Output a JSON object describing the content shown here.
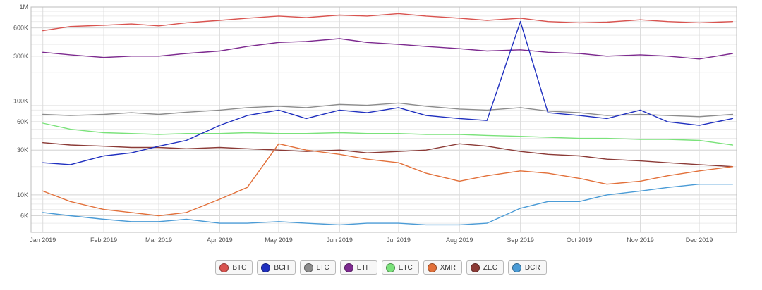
{
  "chart_data": {
    "type": "line",
    "title": "",
    "xlabel": "",
    "ylabel": "",
    "y_scale": "log",
    "ylim": [
      4000,
      1000000
    ],
    "y_ticks": [
      {
        "value": 6000,
        "label": "6K"
      },
      {
        "value": 10000,
        "label": "10K"
      },
      {
        "value": 30000,
        "label": "30K"
      },
      {
        "value": 60000,
        "label": "60K"
      },
      {
        "value": 100000,
        "label": "100K"
      },
      {
        "value": 300000,
        "label": "300K"
      },
      {
        "value": 600000,
        "label": "600K"
      },
      {
        "value": 1000000,
        "label": "1M"
      }
    ],
    "xlim": [
      "2018-12-26",
      "2019-12-20"
    ],
    "x_ticks": [
      {
        "date": "2019-01-01",
        "label": "Jan 2019"
      },
      {
        "date": "2019-02-01",
        "label": "Feb 2019"
      },
      {
        "date": "2019-03-01",
        "label": "Mar 2019"
      },
      {
        "date": "2019-04-01",
        "label": "Apr 2019"
      },
      {
        "date": "2019-05-01",
        "label": "May 2019"
      },
      {
        "date": "2019-06-01",
        "label": "Jun 2019"
      },
      {
        "date": "2019-07-01",
        "label": "Jul 2019"
      },
      {
        "date": "2019-08-01",
        "label": "Aug 2019"
      },
      {
        "date": "2019-09-01",
        "label": "Sep 2019"
      },
      {
        "date": "2019-10-01",
        "label": "Oct 2019"
      },
      {
        "date": "2019-11-01",
        "label": "Nov 2019"
      },
      {
        "date": "2019-12-01",
        "label": "Dec 2019"
      }
    ],
    "grid": true,
    "legend_position": "bottom-center",
    "x": [
      "2019-01-01",
      "2019-01-15",
      "2019-02-01",
      "2019-02-15",
      "2019-03-01",
      "2019-03-15",
      "2019-04-01",
      "2019-04-15",
      "2019-05-01",
      "2019-05-15",
      "2019-06-01",
      "2019-06-15",
      "2019-07-01",
      "2019-07-15",
      "2019-08-01",
      "2019-08-15",
      "2019-09-01",
      "2019-09-15",
      "2019-10-01",
      "2019-10-15",
      "2019-11-01",
      "2019-11-15",
      "2019-12-01",
      "2019-12-18"
    ],
    "series": [
      {
        "name": "BTC",
        "color": "#d9534f",
        "values": [
          560000,
          620000,
          640000,
          660000,
          630000,
          680000,
          720000,
          760000,
          800000,
          770000,
          820000,
          800000,
          850000,
          800000,
          760000,
          720000,
          760000,
          700000,
          680000,
          690000,
          730000,
          700000,
          680000,
          700000
        ]
      },
      {
        "name": "BCH",
        "color": "#1f2fbf",
        "values": [
          22000,
          21000,
          26000,
          28000,
          33000,
          38000,
          55000,
          70000,
          80000,
          65000,
          80000,
          75000,
          85000,
          70000,
          65000,
          62000,
          700000,
          75000,
          70000,
          65000,
          80000,
          60000,
          55000,
          65000
        ]
      },
      {
        "name": "LTC",
        "color": "#8c8c8c",
        "values": [
          72000,
          70000,
          72000,
          75000,
          72000,
          76000,
          80000,
          85000,
          88000,
          85000,
          92000,
          90000,
          95000,
          88000,
          82000,
          80000,
          85000,
          78000,
          75000,
          70000,
          72000,
          70000,
          68000,
          72000
        ]
      },
      {
        "name": "ETH",
        "color": "#7d2a8f",
        "values": [
          330000,
          310000,
          290000,
          300000,
          300000,
          320000,
          340000,
          380000,
          420000,
          430000,
          460000,
          420000,
          400000,
          380000,
          360000,
          340000,
          350000,
          330000,
          320000,
          300000,
          310000,
          300000,
          280000,
          320000
        ]
      },
      {
        "name": "ETC",
        "color": "#7ae27a",
        "values": [
          58000,
          50000,
          46000,
          45000,
          44000,
          45000,
          45000,
          46000,
          45000,
          45000,
          46000,
          45000,
          45000,
          44000,
          44000,
          43000,
          42000,
          41000,
          40000,
          40000,
          39000,
          39000,
          38000,
          34000
        ]
      },
      {
        "name": "XMR",
        "color": "#e2703a",
        "values": [
          11000,
          8500,
          7000,
          6500,
          6000,
          6500,
          9000,
          12000,
          35000,
          30000,
          27000,
          24000,
          22000,
          17000,
          14000,
          16000,
          18000,
          17000,
          15000,
          13000,
          14000,
          16000,
          18000,
          20000
        ]
      },
      {
        "name": "ZEC",
        "color": "#8b3a36",
        "values": [
          36000,
          34000,
          33000,
          32000,
          32000,
          31000,
          32000,
          31000,
          30000,
          29000,
          30000,
          28000,
          29000,
          30000,
          35000,
          33000,
          29000,
          27000,
          26000,
          24000,
          23000,
          22000,
          21000,
          20000
        ]
      },
      {
        "name": "DCR",
        "color": "#4a9bd6",
        "values": [
          6500,
          6000,
          5500,
          5200,
          5200,
          5500,
          5000,
          5000,
          5200,
          5000,
          4800,
          5000,
          5000,
          4800,
          4800,
          5000,
          7200,
          8500,
          8500,
          10000,
          11000,
          12000,
          13000,
          13000
        ]
      }
    ]
  },
  "legend": {
    "items": [
      {
        "label": "BTC",
        "color": "#d9534f"
      },
      {
        "label": "BCH",
        "color": "#1f2fbf"
      },
      {
        "label": "LTC",
        "color": "#8c8c8c"
      },
      {
        "label": "ETH",
        "color": "#7d2a8f"
      },
      {
        "label": "ETC",
        "color": "#7ae27a"
      },
      {
        "label": "XMR",
        "color": "#e2703a"
      },
      {
        "label": "ZEC",
        "color": "#8b3a36"
      },
      {
        "label": "DCR",
        "color": "#4a9bd6"
      }
    ]
  }
}
